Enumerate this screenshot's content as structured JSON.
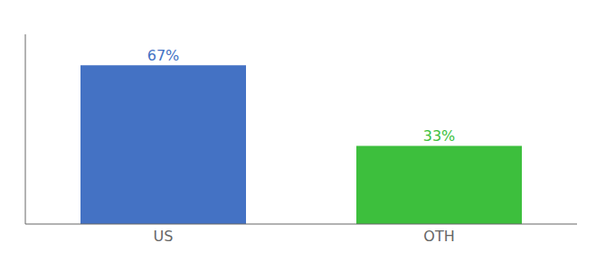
{
  "chart_data": {
    "type": "bar",
    "categories": [
      "US",
      "OTH"
    ],
    "values": [
      67,
      33
    ],
    "colors": [
      "#4472C4",
      "#3DBF3D"
    ],
    "value_labels": [
      "67%",
      "33%"
    ],
    "data_labels": true,
    "ylim": [
      0,
      80
    ],
    "tick_labels": "x"
  }
}
